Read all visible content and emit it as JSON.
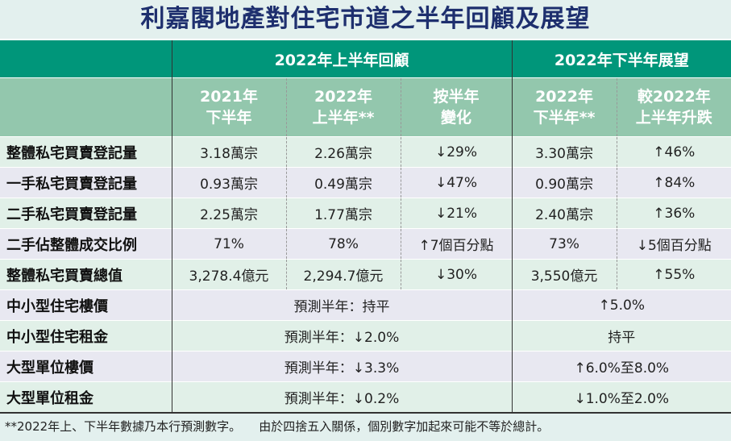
{
  "title": "利嘉閣地產對住宅市道之半年回顧及展望",
  "header": {
    "group_review": "2022年上半年回顧",
    "group_outlook": "2022年下半年展望",
    "columns": [
      [
        "2021年",
        "下半年"
      ],
      [
        "2022年",
        "上半年**"
      ],
      [
        "按半年",
        "變化"
      ],
      [
        "2022年",
        "下半年**"
      ],
      [
        "較2022年",
        "上半年升跌"
      ]
    ]
  },
  "rows": [
    {
      "label": "整體私宅買賣登記量",
      "cells": [
        "3.18萬宗",
        "2.26萬宗",
        "↓29%",
        "3.30萬宗",
        "↑46%"
      ]
    },
    {
      "label": "一手私宅買賣登記量",
      "cells": [
        "0.93萬宗",
        "0.49萬宗",
        "↓47%",
        "0.90萬宗",
        "↑84%"
      ]
    },
    {
      "label": "二手私宅買賣登記量",
      "cells": [
        "2.25萬宗",
        "1.77萬宗",
        "↓21%",
        "2.40萬宗",
        "↑36%"
      ]
    },
    {
      "label": "二手佔整體成交比例",
      "cells": [
        "71%",
        "78%",
        "↑7個百分點",
        "73%",
        "↓5個百分點"
      ]
    },
    {
      "label": "整體私宅買賣總值",
      "cells": [
        "3,278.4億元",
        "2,294.7億元",
        "↓30%",
        "3,550億元",
        "↑55%"
      ]
    }
  ],
  "forecast_rows": [
    {
      "label": "中小型住宅樓價",
      "review": "預測半年：持平",
      "outlook": "↑5.0%"
    },
    {
      "label": "中小型住宅租金",
      "review": "預測半年：↓2.0%",
      "outlook": "持平"
    },
    {
      "label": "大型單位樓價",
      "review": "預測半年：↓3.3%",
      "outlook": "↑6.0%至8.0%"
    },
    {
      "label": "大型單位租金",
      "review": "預測半年：↓0.2%",
      "outlook": "↓1.0%至2.0%"
    }
  ],
  "footnotes": [
    "**2022年上、下半年數據乃本行預測數字。",
    "由於四捨五入關係，個別數字加起來可能不等於總計。"
  ],
  "colors": {
    "title": "#1e2f6e",
    "header_dark": "#00967a",
    "header_light": "#93c7ad",
    "row_green": "#e1f0e8",
    "row_lavender": "#e8e8f1"
  }
}
